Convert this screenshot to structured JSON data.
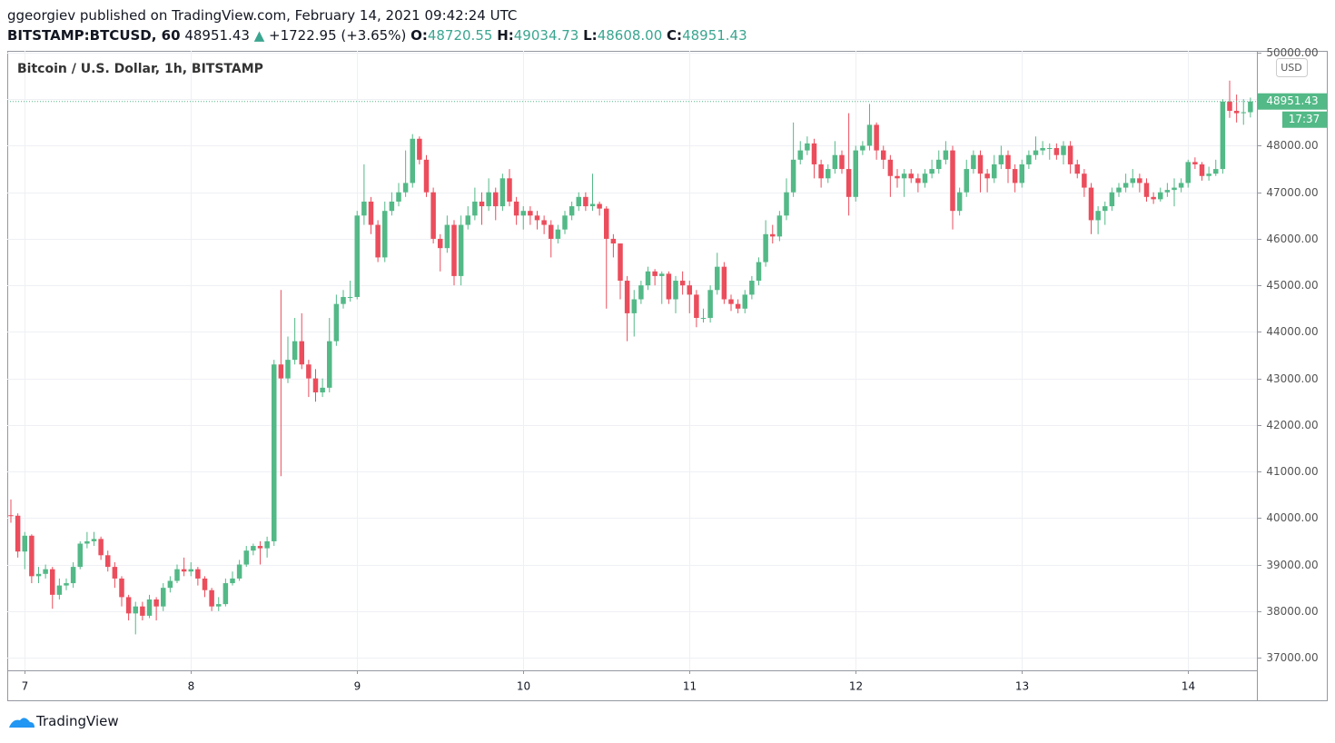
{
  "header": {
    "published": "ggeorgiev published on TradingView.com, February 14, 2021 09:42:24 UTC",
    "symbol": "BITSTAMP:BTCUSD, 60",
    "price": "48951.43",
    "direction": "▲",
    "change": "+1722.95 (+3.65%)",
    "ohlc": [
      {
        "label": "O:",
        "value": "48720.55"
      },
      {
        "label": "H:",
        "value": "49034.73"
      },
      {
        "label": "L:",
        "value": "48608.00"
      },
      {
        "label": "C:",
        "value": "48951.43"
      }
    ]
  },
  "footer": {
    "brand": "TradingView"
  },
  "chart_data": {
    "type": "candlestick",
    "title": "Bitcoin / U.S. Dollar, 1h, BITSTAMP",
    "currency": "USD",
    "up_color": "#53b987",
    "down_color": "#eb4d5c",
    "grid": true,
    "last_price": 48951.43,
    "countdown": "17:37",
    "ylim": [
      36727,
      50039
    ],
    "yticks": [
      {
        "value": 37000,
        "label": "37000.00"
      },
      {
        "value": 38000,
        "label": "38000.00"
      },
      {
        "value": 39000,
        "label": "39000.00"
      },
      {
        "value": 40000,
        "label": "40000.00"
      },
      {
        "value": 41000,
        "label": "41000.00"
      },
      {
        "value": 42000,
        "label": "42000.00"
      },
      {
        "value": 43000,
        "label": "43000.00"
      },
      {
        "value": 44000,
        "label": "44000.00"
      },
      {
        "value": 45000,
        "label": "45000.00"
      },
      {
        "value": 46000,
        "label": "46000.00"
      },
      {
        "value": 47000,
        "label": "47000.00"
      },
      {
        "value": 48000,
        "label": "48000.00"
      },
      {
        "value": 49000,
        "label": "49000.00"
      },
      {
        "value": 50000,
        "label": "50000.00"
      }
    ],
    "categories": [
      null,
      null,
      "7",
      null,
      null,
      null,
      null,
      null,
      null,
      null,
      null,
      null,
      null,
      null,
      null,
      null,
      null,
      null,
      null,
      null,
      null,
      null,
      null,
      null,
      null,
      null,
      "8",
      null,
      null,
      null,
      null,
      null,
      null,
      null,
      null,
      null,
      null,
      null,
      null,
      null,
      null,
      null,
      null,
      null,
      null,
      null,
      null,
      null,
      null,
      null,
      "9",
      null,
      null,
      null,
      null,
      null,
      null,
      null,
      null,
      null,
      null,
      null,
      null,
      null,
      null,
      null,
      null,
      null,
      null,
      null,
      null,
      null,
      null,
      null,
      "10",
      null,
      null,
      null,
      null,
      null,
      null,
      null,
      null,
      null,
      null,
      null,
      null,
      null,
      null,
      null,
      null,
      null,
      null,
      null,
      null,
      null,
      null,
      null,
      "11",
      null,
      null,
      null,
      null,
      null,
      null,
      null,
      null,
      null,
      null,
      null,
      null,
      null,
      null,
      null,
      null,
      null,
      null,
      null,
      null,
      null,
      null,
      null,
      "12",
      null,
      null,
      null,
      null,
      null,
      null,
      null,
      null,
      null,
      null,
      null,
      null,
      null,
      null,
      null,
      null,
      null,
      null,
      null,
      null,
      null,
      null,
      null,
      "13",
      null,
      null,
      null,
      null,
      null,
      null,
      null,
      null,
      null,
      null,
      null,
      null,
      null,
      null,
      null,
      null,
      null,
      null,
      null,
      null,
      null,
      null,
      null,
      "14",
      null,
      null,
      null,
      null,
      null,
      null,
      null,
      null,
      null
    ],
    "open": [
      40060,
      40050,
      39280,
      39620,
      38750,
      38800,
      38900,
      38350,
      38550,
      38600,
      38950,
      39450,
      39500,
      39550,
      39200,
      38950,
      38700,
      38300,
      37950,
      38100,
      37900,
      38250,
      38100,
      38500,
      38650,
      38900,
      38850,
      38900,
      38700,
      38450,
      38100,
      38150,
      38600,
      38700,
      39000,
      39300,
      39400,
      39350,
      39500,
      43300,
      43000,
      43400,
      43800,
      43300,
      43000,
      42700,
      42800,
      43800,
      44600,
      44750,
      44750,
      46500,
      46800,
      46300,
      45600,
      46600,
      46800,
      47000,
      47200,
      48150,
      47700,
      47000,
      46000,
      45800,
      46300,
      45200,
      46300,
      46500,
      46800,
      46700,
      47000,
      46700,
      47300,
      46800,
      46500,
      46600,
      46500,
      46400,
      46300,
      46000,
      46200,
      46500,
      46700,
      46900,
      46700,
      46750,
      46650,
      46000,
      45900,
      45100,
      44400,
      44700,
      45000,
      45300,
      45200,
      45250,
      44700,
      45100,
      45000,
      44800,
      44300,
      44300,
      44900,
      45400,
      44700,
      44600,
      44500,
      44800,
      45100,
      45500,
      46100,
      46050,
      46500,
      47000,
      47700,
      47900,
      48050,
      47600,
      47300,
      47500,
      47800,
      47500,
      46900,
      47900,
      48000,
      48450,
      47900,
      47700,
      47350,
      47300,
      47400,
      47300,
      47200,
      47400,
      47500,
      47700,
      47900,
      46600,
      47000,
      47500,
      47800,
      47400,
      47300,
      47600,
      47800,
      47500,
      47200,
      47600,
      47800,
      47900,
      47950,
      47950,
      47800,
      48000,
      47600,
      47400,
      47100,
      46400,
      46600,
      46700,
      47000,
      47100,
      47200,
      47300,
      47200,
      46900,
      46850,
      47000,
      47050,
      47100,
      47200,
      47650,
      47600,
      47350,
      47400,
      47500,
      48950,
      48750,
      48700,
      48720.55
    ],
    "high": [
      40400,
      40100,
      39700,
      39650,
      38950,
      39000,
      38950,
      38700,
      38700,
      39050,
      39500,
      39700,
      39700,
      39600,
      39300,
      39050,
      38750,
      38350,
      38200,
      38200,
      38350,
      38300,
      38600,
      38750,
      39000,
      39150,
      39050,
      38950,
      38750,
      38500,
      38300,
      38700,
      38850,
      39100,
      39400,
      39450,
      39500,
      39600,
      43400,
      44900,
      43900,
      44300,
      44400,
      43400,
      43200,
      43000,
      44300,
      44800,
      44900,
      45100,
      46600,
      47600,
      46900,
      46400,
      46800,
      47000,
      47200,
      47900,
      48250,
      48200,
      47800,
      47100,
      46100,
      46500,
      46400,
      46500,
      46700,
      47100,
      47000,
      47300,
      47100,
      47400,
      47500,
      46900,
      46700,
      46700,
      46600,
      46500,
      46400,
      46300,
      46600,
      46800,
      47000,
      47000,
      47400,
      46800,
      46700,
      46100,
      45900,
      45200,
      44900,
      45100,
      45400,
      45350,
      45300,
      45300,
      45200,
      45300,
      45100,
      44900,
      44500,
      45000,
      45700,
      45500,
      44800,
      44700,
      44900,
      45200,
      45600,
      46400,
      46300,
      46600,
      47300,
      48500,
      48100,
      48200,
      48150,
      47700,
      47600,
      48100,
      47900,
      48700,
      48000,
      48100,
      48900,
      48500,
      48000,
      47800,
      47500,
      47500,
      47500,
      47400,
      47500,
      47700,
      47900,
      48100,
      48000,
      47100,
      47700,
      47900,
      47900,
      47500,
      47800,
      48000,
      47900,
      47600,
      47700,
      47900,
      48200,
      48100,
      48050,
      48050,
      48100,
      48100,
      47700,
      47500,
      47200,
      46700,
      46800,
      47100,
      47200,
      47400,
      47500,
      47400,
      47300,
      47000,
      47100,
      47200,
      47300,
      47300,
      47700,
      47750,
      47650,
      47550,
      47700,
      49000,
      49400,
      49100,
      49000,
      49034.73
    ],
    "low": [
      39900,
      39150,
      38900,
      38600,
      38600,
      38700,
      38050,
      38250,
      38450,
      38500,
      38900,
      39350,
      39400,
      39100,
      38850,
      38500,
      38100,
      37800,
      37500,
      37800,
      37850,
      37800,
      38000,
      38400,
      38600,
      38750,
      38750,
      38550,
      38300,
      38000,
      38000,
      38100,
      38550,
      38650,
      38950,
      39200,
      39000,
      39150,
      39400,
      40900,
      42900,
      43300,
      43200,
      42600,
      42500,
      42600,
      42700,
      43700,
      44500,
      44650,
      44700,
      46300,
      46100,
      45500,
      45500,
      46500,
      46700,
      46900,
      47100,
      47600,
      46900,
      45900,
      45300,
      45700,
      45000,
      45000,
      46200,
      46400,
      46300,
      46600,
      46400,
      46600,
      46700,
      46300,
      46200,
      46300,
      46200,
      46100,
      45600,
      45900,
      46100,
      46400,
      46600,
      46600,
      46600,
      46500,
      44500,
      45600,
      44700,
      43800,
      43900,
      44600,
      44900,
      45000,
      44600,
      44600,
      44400,
      44800,
      44400,
      44100,
      44200,
      44200,
      44800,
      44600,
      44450,
      44400,
      44400,
      44700,
      45000,
      45400,
      45900,
      45950,
      46400,
      46900,
      47600,
      47800,
      47300,
      47100,
      47200,
      47400,
      47400,
      46500,
      46800,
      47800,
      47900,
      47700,
      47500,
      46900,
      47100,
      46900,
      47200,
      47000,
      47100,
      47300,
      47400,
      47600,
      46200,
      46500,
      46900,
      47400,
      47000,
      47000,
      47200,
      47500,
      47200,
      47000,
      47100,
      47500,
      47700,
      47800,
      47700,
      47700,
      47600,
      47400,
      47300,
      46900,
      46100,
      46100,
      46300,
      46600,
      46900,
      47000,
      47100,
      47000,
      46800,
      46750,
      46800,
      46900,
      46700,
      47000,
      47100,
      47500,
      47250,
      47250,
      47350,
      47400,
      48600,
      48500,
      48450,
      48608
    ],
    "close": [
      40050,
      39280,
      39620,
      38750,
      38800,
      38900,
      38350,
      38550,
      38600,
      38950,
      39450,
      39500,
      39550,
      39200,
      38950,
      38700,
      38300,
      37950,
      38100,
      37900,
      38250,
      38100,
      38500,
      38650,
      38900,
      38850,
      38900,
      38700,
      38450,
      38100,
      38150,
      38600,
      38700,
      39000,
      39300,
      39400,
      39350,
      39500,
      43300,
      43000,
      43400,
      43800,
      43300,
      43000,
      42700,
      42800,
      43800,
      44600,
      44750,
      44750,
      46500,
      46800,
      46300,
      45600,
      46600,
      46800,
      47000,
      47200,
      48150,
      47700,
      47000,
      46000,
      45800,
      46300,
      45200,
      46300,
      46500,
      46800,
      46700,
      47000,
      46700,
      47300,
      46800,
      46500,
      46600,
      46500,
      46400,
      46300,
      46000,
      46200,
      46500,
      46700,
      46900,
      46700,
      46750,
      46650,
      46000,
      45900,
      45100,
      44400,
      44700,
      45000,
      45300,
      45200,
      45250,
      44700,
      45100,
      45000,
      44800,
      44300,
      44300,
      44900,
      45400,
      44700,
      44600,
      44500,
      44800,
      45100,
      45500,
      46100,
      46050,
      46500,
      47000,
      47700,
      47900,
      48050,
      47600,
      47300,
      47500,
      47800,
      47500,
      46900,
      47900,
      48000,
      48450,
      47900,
      47700,
      47350,
      47300,
      47400,
      47300,
      47200,
      47400,
      47500,
      47700,
      47900,
      46600,
      47000,
      47500,
      47800,
      47400,
      47300,
      47600,
      47800,
      47500,
      47200,
      47600,
      47800,
      47900,
      47950,
      47950,
      47800,
      48000,
      47600,
      47400,
      47100,
      46400,
      46600,
      46700,
      47000,
      47100,
      47200,
      47300,
      47200,
      46900,
      46850,
      47000,
      47050,
      47100,
      47200,
      47650,
      47600,
      47350,
      47400,
      47500,
      48950,
      48750,
      48700,
      48720.55,
      48951.43
    ]
  }
}
